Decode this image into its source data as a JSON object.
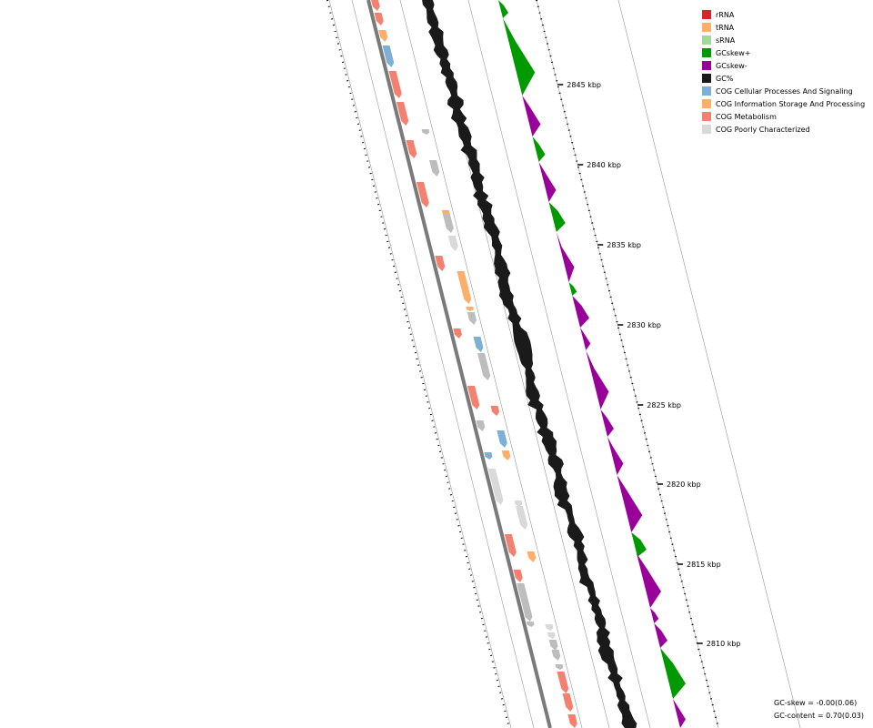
{
  "legend": [
    {
      "label": "rRNA",
      "color": "#d62728"
    },
    {
      "label": "tRNA",
      "color": "#fdae6b"
    },
    {
      "label": "sRNA",
      "color": "#a1d99b"
    },
    {
      "label": "GCskew+",
      "color": "#009900"
    },
    {
      "label": "GCskew-",
      "color": "#990099"
    },
    {
      "label": "GC%",
      "color": "#1a1a1a"
    },
    {
      "label": "COG Cellular Processes And Signaling",
      "color": "#7eb0d5"
    },
    {
      "label": "COG Information Storage And Processing",
      "color": "#fdae6b"
    },
    {
      "label": "COG Metabolism",
      "color": "#f4806f"
    },
    {
      "label": "COG Poorly Characterized",
      "color": "#d9d9d9"
    }
  ],
  "ruler": {
    "labels": [
      "2845 kbp",
      "2840 kbp",
      "2835 kbp",
      "2830 kbp",
      "2825 kbp",
      "2820 kbp",
      "2815 kbp",
      "2810 kbp"
    ]
  },
  "stats": {
    "gc_skew": "GC-skew = -0.00(0.06)",
    "gc_content": "GC-content = 0.70(0.03)"
  },
  "colors": {
    "backbone": "#7a7a7a",
    "ring_line": "#9a9a9a",
    "gc": "#1a1a1a",
    "skew_pos": "#009900",
    "skew_neg": "#990099",
    "cog_cellular": "#7eb0d5",
    "cog_info": "#fdae6b",
    "cog_metab": "#f4806f",
    "cog_poor_dark": "#bdbdbd",
    "cog_poor_light": "#d9d9d9"
  }
}
